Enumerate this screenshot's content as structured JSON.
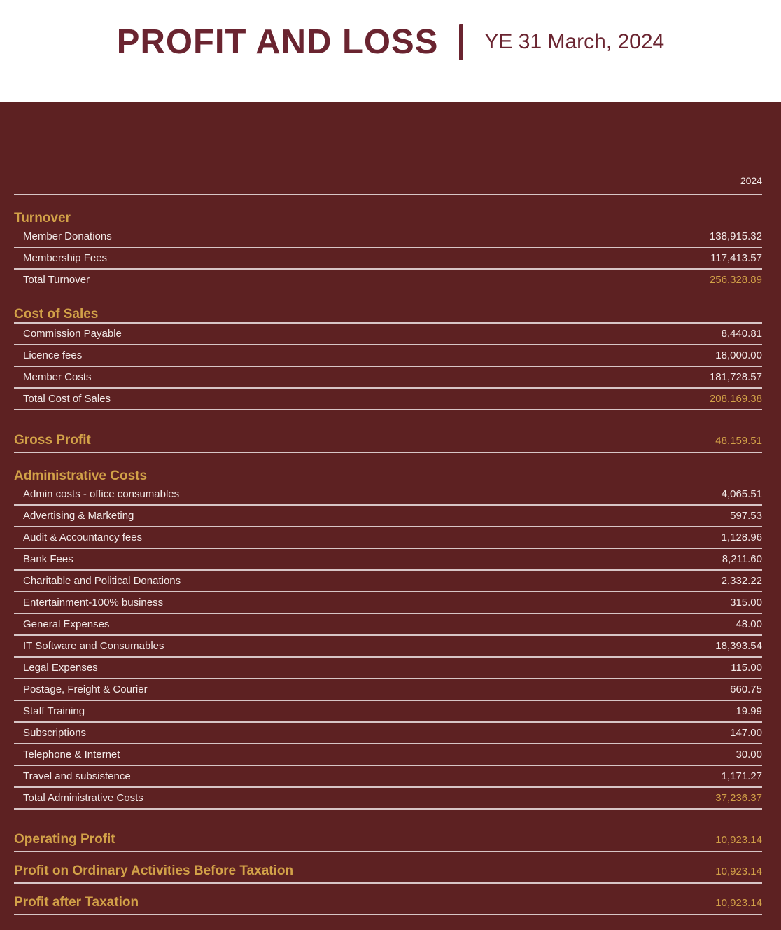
{
  "header": {
    "title": "PROFIT AND LOSS",
    "period": "YE 31 March, 2024"
  },
  "colors": {
    "maroon_bg": "#5d2122",
    "title_text": "#6a2430",
    "gold": "#d2a148",
    "white_text": "#f2eae8",
    "line": "#d8c5c6"
  },
  "statement": {
    "year_label": "2024",
    "rows": [
      {
        "type": "colheader",
        "value": "2024",
        "name": "year-column-header"
      },
      {
        "type": "section",
        "label": "Turnover",
        "underline": false
      },
      {
        "type": "item",
        "label": "Member Donations",
        "value": "138,915.32"
      },
      {
        "type": "item",
        "label": "Membership Fees",
        "value": "117,413.57"
      },
      {
        "type": "total",
        "label": "Total Turnover",
        "value": "256,328.89",
        "underline": false
      },
      {
        "type": "section",
        "label": "Cost of Sales",
        "underline": true
      },
      {
        "type": "item",
        "label": "Commission Payable",
        "value": "8,440.81"
      },
      {
        "type": "item",
        "label": "Licence fees",
        "value": "18,000.00"
      },
      {
        "type": "item",
        "label": "Member Costs",
        "value": "181,728.57"
      },
      {
        "type": "total",
        "label": "Total Cost of Sales",
        "value": "208,169.38",
        "underline": true
      },
      {
        "type": "profit",
        "label": "Gross Profit",
        "value": "48,159.51"
      },
      {
        "type": "section",
        "label": "Administrative Costs",
        "underline": false
      },
      {
        "type": "item",
        "label": "Admin costs - office consumables",
        "value": "4,065.51"
      },
      {
        "type": "item",
        "label": "Advertising & Marketing",
        "value": "597.53"
      },
      {
        "type": "item",
        "label": "Audit & Accountancy fees",
        "value": "1,128.96"
      },
      {
        "type": "item",
        "label": "Bank Fees",
        "value": "8,211.60"
      },
      {
        "type": "item",
        "label": "Charitable and Political Donations",
        "value": "2,332.22"
      },
      {
        "type": "item",
        "label": "Entertainment-100% business",
        "value": "315.00"
      },
      {
        "type": "item",
        "label": "General Expenses",
        "value": "48.00"
      },
      {
        "type": "item",
        "label": "IT Software and Consumables",
        "value": "18,393.54"
      },
      {
        "type": "item",
        "label": "Legal Expenses",
        "value": "115.00"
      },
      {
        "type": "item",
        "label": "Postage, Freight & Courier",
        "value": "660.75"
      },
      {
        "type": "item",
        "label": "Staff Training",
        "value": "19.99"
      },
      {
        "type": "item",
        "label": "Subscriptions",
        "value": "147.00"
      },
      {
        "type": "item",
        "label": "Telephone & Internet",
        "value": "30.00"
      },
      {
        "type": "item",
        "label": "Travel and subsistence",
        "value": "1,171.27"
      },
      {
        "type": "total",
        "label": "Total Administrative Costs",
        "value": "37,236.37",
        "underline": true
      },
      {
        "type": "profit",
        "label": "Operating Profit",
        "value": "10,923.14"
      },
      {
        "type": "profit",
        "label": "Profit on Ordinary Activities Before Taxation",
        "value": "10,923.14",
        "tight": true
      },
      {
        "type": "profit",
        "label": "Profit after Taxation",
        "value": "10,923.14",
        "tight": true
      }
    ]
  }
}
